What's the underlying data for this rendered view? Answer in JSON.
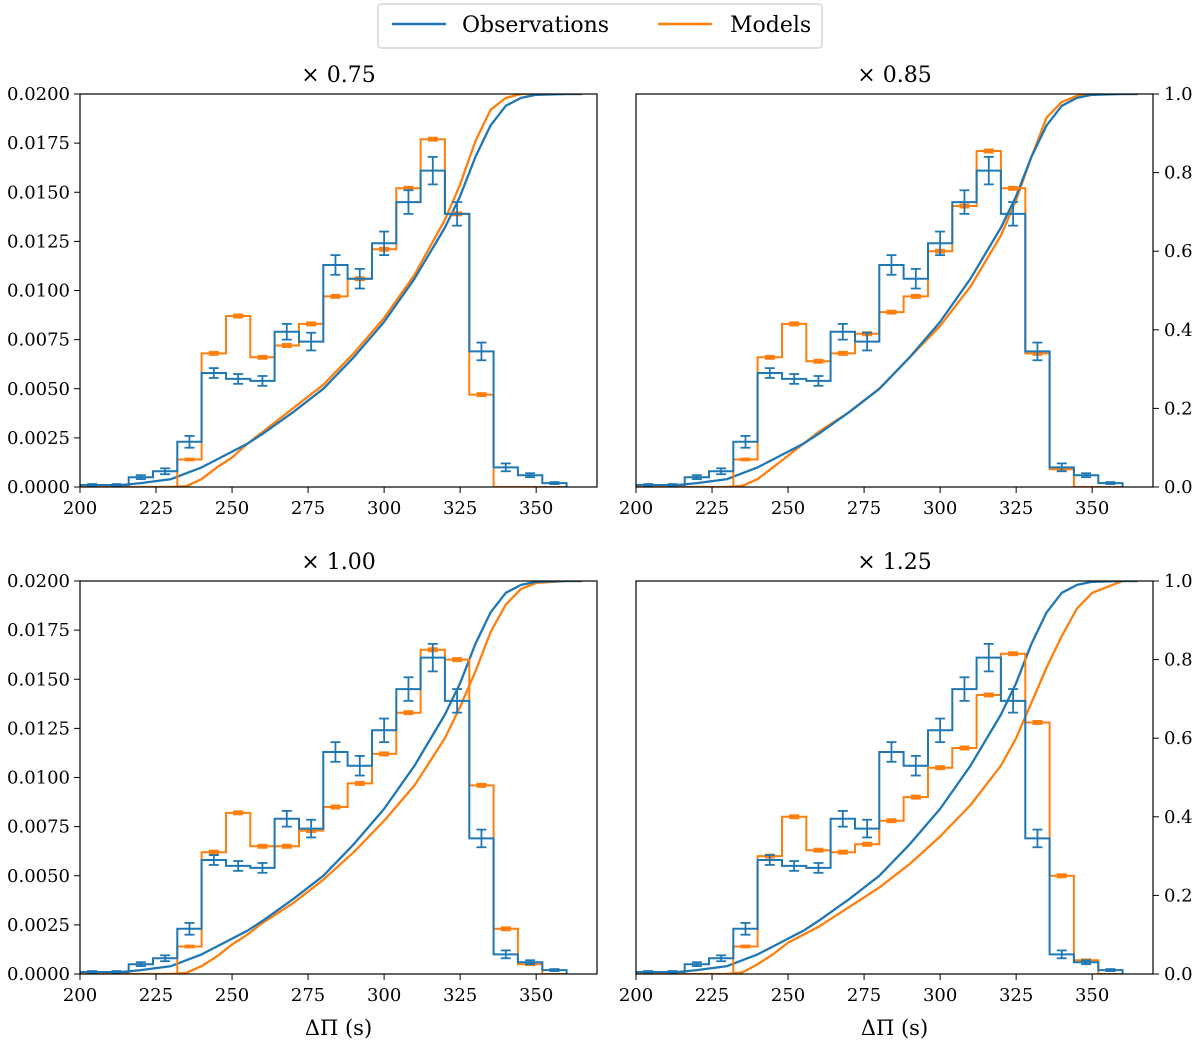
{
  "legend": {
    "placement": "top-center",
    "entries": [
      {
        "label": "Observations",
        "color": "#1f77b4"
      },
      {
        "label": "Models",
        "color": "#ff7f0e"
      }
    ]
  },
  "colors": {
    "observations": "#1f77b4",
    "models": "#ff7f0e",
    "axes": "#000000"
  },
  "chart_data": [
    {
      "type": "bar",
      "title": "× 0.75",
      "xlabel": "",
      "ylabel": "",
      "xlim": [
        200,
        370
      ],
      "ylim": [
        0,
        0.02
      ],
      "ylim_right": [
        0,
        1.0
      ],
      "x_ticks": [
        "200",
        "225",
        "250",
        "275",
        "300",
        "325",
        "350"
      ],
      "y_ticks_left": [
        "0.0000",
        "0.0025",
        "0.0050",
        "0.0075",
        "0.0100",
        "0.0125",
        "0.0150",
        "0.0175",
        "0.0200"
      ],
      "y_ticks_right": [],
      "bin_edges": [
        200,
        208,
        216,
        224,
        232,
        240,
        248,
        256,
        264,
        272,
        280,
        288,
        296,
        304,
        312,
        320,
        328,
        336,
        344,
        352,
        360
      ],
      "series": [
        {
          "name": "Observations",
          "values": [
            0.0001,
            0.0001,
            0.0005,
            0.0008,
            0.0023,
            0.0058,
            0.0055,
            0.0054,
            0.0079,
            0.0074,
            0.0113,
            0.0106,
            0.0124,
            0.0145,
            0.0161,
            0.0139,
            0.0069,
            0.001,
            0.0006,
            0.0002
          ],
          "errors": [
            5e-05,
            5e-05,
            0.0001,
            0.00015,
            0.0003,
            0.00025,
            0.00025,
            0.00025,
            0.0004,
            0.00045,
            0.0005,
            0.0005,
            0.0006,
            0.0006,
            0.0007,
            0.0006,
            0.00045,
            0.0002,
            0.0001,
            5e-05
          ]
        },
        {
          "name": "Models",
          "values": [
            0.0,
            0.0,
            0.0,
            0.0,
            0.0014,
            0.0068,
            0.0087,
            0.0066,
            0.0072,
            0.0083,
            0.0097,
            0.0106,
            0.0121,
            0.0152,
            0.0177,
            0.0139,
            0.0047,
            0.0,
            0.0,
            0.0
          ],
          "errors": [
            0,
            0,
            0,
            0,
            5e-05,
            8e-05,
            8e-05,
            8e-05,
            8e-05,
            8e-05,
            8e-05,
            8e-05,
            8e-05,
            8e-05,
            8e-05,
            8e-05,
            8e-05,
            0,
            0,
            0
          ]
        }
      ],
      "cumulative": {
        "x": [
          200,
          210,
          220,
          230,
          235,
          240,
          245,
          250,
          255,
          260,
          270,
          280,
          290,
          300,
          310,
          320,
          325,
          330,
          335,
          340,
          345,
          350,
          360,
          365
        ],
        "observations": [
          0.0,
          0.002,
          0.01,
          0.02,
          0.035,
          0.05,
          0.07,
          0.09,
          0.11,
          0.135,
          0.19,
          0.25,
          0.33,
          0.42,
          0.53,
          0.66,
          0.74,
          0.84,
          0.92,
          0.97,
          0.99,
          0.998,
          1.0,
          1.0
        ],
        "models": [
          0.0,
          0.0,
          0.0,
          0.0,
          0.002,
          0.02,
          0.05,
          0.075,
          0.11,
          0.14,
          0.2,
          0.26,
          0.34,
          0.43,
          0.54,
          0.68,
          0.77,
          0.88,
          0.96,
          0.99,
          1.0,
          1.0,
          1.0,
          1.0
        ]
      }
    },
    {
      "type": "bar",
      "title": "× 0.85",
      "xlabel": "",
      "ylabel": "",
      "xlim": [
        200,
        370
      ],
      "ylim": [
        0,
        0.02
      ],
      "ylim_right": [
        0,
        1.0
      ],
      "x_ticks": [
        "200",
        "225",
        "250",
        "275",
        "300",
        "325",
        "350"
      ],
      "y_ticks_left": [],
      "y_ticks_right": [
        "0.0",
        "0.2",
        "0.4",
        "0.6",
        "0.8",
        "1.0"
      ],
      "bin_edges": [
        200,
        208,
        216,
        224,
        232,
        240,
        248,
        256,
        264,
        272,
        280,
        288,
        296,
        304,
        312,
        320,
        328,
        336,
        344,
        352,
        360
      ],
      "series": [
        {
          "name": "Observations",
          "values": [
            0.0001,
            0.0001,
            0.0005,
            0.0008,
            0.0023,
            0.0058,
            0.0055,
            0.0054,
            0.0079,
            0.0074,
            0.0113,
            0.0106,
            0.0124,
            0.0145,
            0.0161,
            0.0139,
            0.0069,
            0.001,
            0.0006,
            0.0002
          ],
          "errors": [
            5e-05,
            5e-05,
            0.0001,
            0.00015,
            0.0003,
            0.00025,
            0.00025,
            0.00025,
            0.0004,
            0.00045,
            0.0005,
            0.0005,
            0.0006,
            0.0006,
            0.0007,
            0.0006,
            0.00045,
            0.0002,
            0.0001,
            5e-05
          ]
        },
        {
          "name": "Models",
          "values": [
            0.0,
            0.0,
            0.0,
            0.0,
            0.0014,
            0.0066,
            0.0083,
            0.0064,
            0.0068,
            0.0078,
            0.0089,
            0.0097,
            0.012,
            0.0143,
            0.0171,
            0.0152,
            0.0068,
            0.0009,
            0.0,
            0.0
          ],
          "errors": [
            0,
            0,
            0,
            0,
            5e-05,
            8e-05,
            8e-05,
            8e-05,
            8e-05,
            8e-05,
            8e-05,
            8e-05,
            8e-05,
            8e-05,
            8e-05,
            8e-05,
            8e-05,
            5e-05,
            0,
            0
          ]
        }
      ],
      "cumulative": {
        "x": [
          200,
          210,
          220,
          230,
          235,
          240,
          245,
          250,
          255,
          260,
          270,
          280,
          290,
          300,
          310,
          320,
          325,
          330,
          335,
          340,
          345,
          350,
          360,
          365
        ],
        "observations": [
          0.0,
          0.002,
          0.01,
          0.02,
          0.035,
          0.05,
          0.07,
          0.09,
          0.11,
          0.135,
          0.19,
          0.25,
          0.33,
          0.42,
          0.53,
          0.66,
          0.74,
          0.84,
          0.92,
          0.97,
          0.99,
          0.998,
          1.0,
          1.0
        ],
        "models": [
          0.0,
          0.0,
          0.0,
          0.0,
          0.003,
          0.02,
          0.05,
          0.08,
          0.11,
          0.14,
          0.19,
          0.25,
          0.33,
          0.41,
          0.51,
          0.64,
          0.73,
          0.84,
          0.94,
          0.98,
          0.995,
          1.0,
          1.0,
          1.0
        ]
      }
    },
    {
      "type": "bar",
      "title": "× 1.00",
      "xlabel": "ΔΠ (s)",
      "ylabel": "",
      "xlim": [
        200,
        370
      ],
      "ylim": [
        0,
        0.02
      ],
      "ylim_right": [
        0,
        1.0
      ],
      "x_ticks": [
        "200",
        "225",
        "250",
        "275",
        "300",
        "325",
        "350"
      ],
      "y_ticks_left": [
        "0.0000",
        "0.0025",
        "0.0050",
        "0.0075",
        "0.0100",
        "0.0125",
        "0.0150",
        "0.0175",
        "0.0200"
      ],
      "y_ticks_right": [],
      "bin_edges": [
        200,
        208,
        216,
        224,
        232,
        240,
        248,
        256,
        264,
        272,
        280,
        288,
        296,
        304,
        312,
        320,
        328,
        336,
        344,
        352,
        360
      ],
      "series": [
        {
          "name": "Observations",
          "values": [
            0.0001,
            0.0001,
            0.0005,
            0.0008,
            0.0023,
            0.0058,
            0.0055,
            0.0054,
            0.0079,
            0.0074,
            0.0113,
            0.0106,
            0.0124,
            0.0145,
            0.0161,
            0.0139,
            0.0069,
            0.001,
            0.0006,
            0.0002
          ],
          "errors": [
            5e-05,
            5e-05,
            0.0001,
            0.00015,
            0.0003,
            0.00025,
            0.00025,
            0.00025,
            0.0004,
            0.00045,
            0.0005,
            0.0005,
            0.0006,
            0.0006,
            0.0007,
            0.0006,
            0.00045,
            0.0002,
            0.0001,
            5e-05
          ]
        },
        {
          "name": "Models",
          "values": [
            0.0,
            0.0,
            0.0,
            0.0,
            0.0014,
            0.0062,
            0.0082,
            0.0065,
            0.0065,
            0.0073,
            0.0085,
            0.0097,
            0.0112,
            0.0133,
            0.0165,
            0.016,
            0.0096,
            0.0023,
            0.0005,
            0.0
          ],
          "errors": [
            0,
            0,
            0,
            0,
            5e-05,
            8e-05,
            8e-05,
            8e-05,
            8e-05,
            8e-05,
            8e-05,
            8e-05,
            8e-05,
            8e-05,
            8e-05,
            8e-05,
            8e-05,
            8e-05,
            5e-05,
            0
          ]
        }
      ],
      "cumulative": {
        "x": [
          200,
          210,
          220,
          230,
          235,
          240,
          245,
          250,
          255,
          260,
          270,
          280,
          290,
          300,
          310,
          320,
          325,
          330,
          335,
          340,
          345,
          350,
          360,
          365
        ],
        "observations": [
          0.0,
          0.002,
          0.01,
          0.02,
          0.035,
          0.05,
          0.07,
          0.09,
          0.11,
          0.135,
          0.19,
          0.25,
          0.33,
          0.42,
          0.53,
          0.66,
          0.74,
          0.84,
          0.92,
          0.97,
          0.99,
          0.998,
          1.0,
          1.0
        ],
        "models": [
          0.0,
          0.0,
          0.0,
          0.0,
          0.003,
          0.02,
          0.045,
          0.075,
          0.1,
          0.13,
          0.18,
          0.24,
          0.31,
          0.39,
          0.48,
          0.6,
          0.68,
          0.77,
          0.87,
          0.94,
          0.98,
          0.995,
          1.0,
          1.0
        ]
      }
    },
    {
      "type": "bar",
      "title": "× 1.25",
      "xlabel": "ΔΠ (s)",
      "ylabel": "",
      "xlim": [
        200,
        370
      ],
      "ylim": [
        0,
        0.02
      ],
      "ylim_right": [
        0,
        1.0
      ],
      "x_ticks": [
        "200",
        "225",
        "250",
        "275",
        "300",
        "325",
        "350"
      ],
      "y_ticks_left": [],
      "y_ticks_right": [
        "0.0",
        "0.2",
        "0.4",
        "0.6",
        "0.8",
        "1.0"
      ],
      "bin_edges": [
        200,
        208,
        216,
        224,
        232,
        240,
        248,
        256,
        264,
        272,
        280,
        288,
        296,
        304,
        312,
        320,
        328,
        336,
        344,
        352,
        360
      ],
      "series": [
        {
          "name": "Observations",
          "values": [
            0.0001,
            0.0001,
            0.0005,
            0.0008,
            0.0023,
            0.0058,
            0.0055,
            0.0054,
            0.0079,
            0.0074,
            0.0113,
            0.0106,
            0.0124,
            0.0145,
            0.0161,
            0.0139,
            0.0069,
            0.001,
            0.0006,
            0.0002
          ],
          "errors": [
            5e-05,
            5e-05,
            0.0001,
            0.00015,
            0.0003,
            0.00025,
            0.00025,
            0.00025,
            0.0004,
            0.00045,
            0.0005,
            0.0005,
            0.0006,
            0.0006,
            0.0007,
            0.0006,
            0.00045,
            0.0002,
            0.0001,
            5e-05
          ]
        },
        {
          "name": "Models",
          "values": [
            0.0,
            0.0,
            0.0,
            0.0,
            0.0014,
            0.006,
            0.008,
            0.0063,
            0.0062,
            0.0066,
            0.0078,
            0.009,
            0.0105,
            0.0115,
            0.0142,
            0.0163,
            0.0128,
            0.005,
            0.0007,
            0.0
          ],
          "errors": [
            0,
            0,
            0,
            0,
            5e-05,
            8e-05,
            8e-05,
            8e-05,
            8e-05,
            8e-05,
            8e-05,
            8e-05,
            8e-05,
            8e-05,
            8e-05,
            8e-05,
            8e-05,
            8e-05,
            5e-05,
            0
          ]
        }
      ],
      "cumulative": {
        "x": [
          200,
          210,
          220,
          230,
          235,
          240,
          245,
          250,
          255,
          260,
          270,
          280,
          290,
          300,
          310,
          320,
          325,
          330,
          335,
          340,
          345,
          350,
          360,
          365
        ],
        "observations": [
          0.0,
          0.002,
          0.01,
          0.02,
          0.035,
          0.05,
          0.07,
          0.09,
          0.11,
          0.135,
          0.19,
          0.25,
          0.33,
          0.42,
          0.53,
          0.66,
          0.74,
          0.84,
          0.92,
          0.97,
          0.99,
          0.998,
          1.0,
          1.0
        ],
        "models": [
          0.0,
          0.0,
          0.0,
          0.0,
          0.004,
          0.025,
          0.05,
          0.08,
          0.1,
          0.12,
          0.17,
          0.22,
          0.28,
          0.35,
          0.43,
          0.53,
          0.6,
          0.69,
          0.78,
          0.86,
          0.93,
          0.97,
          1.0,
          1.0
        ]
      }
    }
  ]
}
